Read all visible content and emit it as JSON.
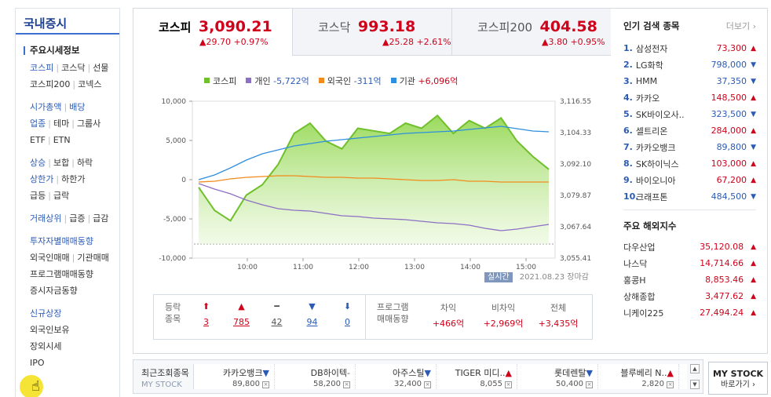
{
  "sidebar": {
    "title": "국내증시",
    "head": "주요시세정보",
    "groups": [
      [
        [
          "코스피",
          "코스닥",
          "선물"
        ],
        [
          "코스피200",
          "코넥스"
        ]
      ],
      [
        [
          "시가총액",
          "배당"
        ],
        [
          "업종",
          "테마",
          "그룹사"
        ],
        [
          "ETF",
          "ETN"
        ]
      ],
      [
        [
          "상승",
          "보합",
          "하락"
        ],
        [
          "상한가",
          "하한가"
        ],
        [
          "급등",
          "급락"
        ]
      ],
      [
        [
          "거래상위",
          "급증",
          "급감"
        ]
      ],
      [
        [
          "투자자별매매동향"
        ],
        [
          "외국인매매",
          "기관매매"
        ],
        [
          "프로그램매매동향"
        ],
        [
          "증시자금동향"
        ]
      ],
      [
        [
          "신규상장"
        ],
        [
          "외국인보유"
        ],
        [
          "장외시세"
        ],
        [
          "IPO"
        ]
      ]
    ]
  },
  "tabs": [
    {
      "name": "코스피",
      "value": "3,090.21",
      "change": "▲29.70 +0.97%"
    },
    {
      "name": "코스닥",
      "value": "993.18",
      "change": "▲25.28 +2.61%"
    },
    {
      "name": "코스피200",
      "value": "404.58",
      "change": "▲3.80 +0.95%"
    }
  ],
  "legend": {
    "kospi": "코스피",
    "retail": "개인",
    "retail_val": "-5,722억",
    "foreign": "외국인",
    "foreign_val": "-311억",
    "inst": "기관",
    "inst_val": "+6,096억"
  },
  "chart_data": {
    "type": "line",
    "x_ticks": [
      "10:00",
      "11:00",
      "12:00",
      "13:00",
      "14:00",
      "15:00"
    ],
    "left_ticks": [
      "10,000",
      "5,000",
      "0",
      "-5,000",
      "-10,000"
    ],
    "right_ticks": [
      "3,116.55",
      "3,104.33",
      "3,092.10",
      "3,079.87",
      "3,067.64",
      "3,055.41"
    ],
    "series": [
      {
        "name": "코스피",
        "color": "#6fc02b",
        "axis": "right",
        "values": [
          3083,
          3074,
          3070,
          3080,
          3084,
          3092,
          3104,
          3108,
          3101,
          3098,
          3106,
          3105,
          3104,
          3108,
          3106,
          3111,
          3104,
          3109,
          3106,
          3110,
          3101,
          3095,
          3090
        ]
      },
      {
        "name": "개인",
        "color": "#8d6fc6",
        "axis": "left",
        "values": [
          -500,
          -1200,
          -1800,
          -2600,
          -3200,
          -3700,
          -3900,
          -4000,
          -4300,
          -4600,
          -4700,
          -4900,
          -5000,
          -5100,
          -5300,
          -5500,
          -5600,
          -5800,
          -6200,
          -6500,
          -6300,
          -6000,
          -5700
        ]
      },
      {
        "name": "외국인",
        "color": "#f28b1d",
        "axis": "left",
        "values": [
          -300,
          -200,
          100,
          300,
          400,
          500,
          500,
          400,
          300,
          300,
          200,
          200,
          100,
          0,
          -100,
          -100,
          0,
          -200,
          -200,
          -300,
          -300,
          -300,
          -300
        ]
      },
      {
        "name": "기관",
        "color": "#2e8fe0",
        "axis": "left",
        "values": [
          0,
          600,
          1500,
          2500,
          3300,
          3800,
          4300,
          4600,
          4900,
          5100,
          5300,
          5500,
          5700,
          5900,
          6000,
          6100,
          6200,
          6400,
          6600,
          6800,
          6500,
          6200,
          6100
        ]
      }
    ],
    "ylim_left": [
      -10000,
      10000
    ],
    "ylim_right": [
      3055.41,
      3116.55
    ]
  },
  "realtime": {
    "badge": "실시간",
    "date": "2021.08.23",
    "status": "장마감"
  },
  "summary": {
    "label1": "등락",
    "label2": "종목",
    "cells": [
      {
        "icon": "⬆",
        "num": "3",
        "cls": "red"
      },
      {
        "icon": "▲",
        "num": "785",
        "cls": "red"
      },
      {
        "icon": "━",
        "num": "42",
        "cls": "gray"
      },
      {
        "icon": "▼",
        "num": "94",
        "cls": "blue"
      },
      {
        "icon": "⬇",
        "num": "0",
        "cls": "blue"
      }
    ],
    "prog1": "프로그램",
    "prog2": "매매동향",
    "prog_cells": [
      {
        "cap": "차익",
        "val": "+466억"
      },
      {
        "cap": "비차익",
        "val": "+2,969억"
      },
      {
        "cap": "전체",
        "val": "+3,435억"
      }
    ]
  },
  "popular": {
    "title": "인기 검색 종목",
    "more": "더보기",
    "items": [
      {
        "rank": "1.",
        "name": "삼성전자",
        "price": "73,300",
        "dir": "up"
      },
      {
        "rank": "2.",
        "name": "LG화학",
        "price": "798,000",
        "dir": "down"
      },
      {
        "rank": "3.",
        "name": "HMM",
        "price": "37,350",
        "dir": "down"
      },
      {
        "rank": "4.",
        "name": "카카오",
        "price": "148,500",
        "dir": "up"
      },
      {
        "rank": "5.",
        "name": "SK바이오사..",
        "price": "323,500",
        "dir": "down"
      },
      {
        "rank": "6.",
        "name": "셀트리온",
        "price": "284,000",
        "dir": "up"
      },
      {
        "rank": "7.",
        "name": "카카오뱅크",
        "price": "89,800",
        "dir": "down"
      },
      {
        "rank": "8.",
        "name": "SK하이닉스",
        "price": "103,000",
        "dir": "up"
      },
      {
        "rank": "9.",
        "name": "바이오니아",
        "price": "67,200",
        "dir": "up"
      },
      {
        "rank": "10.",
        "name": "크래프톤",
        "price": "484,500",
        "dir": "down"
      }
    ]
  },
  "world": {
    "title": "주요 해외지수",
    "items": [
      {
        "name": "다우산업",
        "value": "35,120.08"
      },
      {
        "name": "나스닥",
        "value": "14,714.66"
      },
      {
        "name": "홍콩H",
        "value": "8,853.46"
      },
      {
        "name": "상해종합",
        "value": "3,477.62"
      },
      {
        "name": "니케이225",
        "value": "27,494.24"
      }
    ]
  },
  "bottom": {
    "recent1": "최근조회종목",
    "recent2": "MY STOCK",
    "stocks": [
      {
        "name": "카카오뱅크",
        "arrow": "▼",
        "price": "89,800",
        "cls": "blue"
      },
      {
        "name": "DB하이텍",
        "arrow": "-",
        "price": "58,200",
        "cls": "gray"
      },
      {
        "name": "아주스틸",
        "arrow": "▼",
        "price": "32,400",
        "cls": "blue"
      },
      {
        "name": "TIGER 미디..",
        "arrow": "▲",
        "price": "8,055",
        "cls": "red"
      },
      {
        "name": "롯데렌탈",
        "arrow": "▼",
        "price": "50,400",
        "cls": "blue"
      },
      {
        "name": "블루베리 N..",
        "arrow": "▲",
        "price": "2,820",
        "cls": "red"
      }
    ],
    "btn1": "MY STOCK",
    "btn2": "바로가기"
  }
}
